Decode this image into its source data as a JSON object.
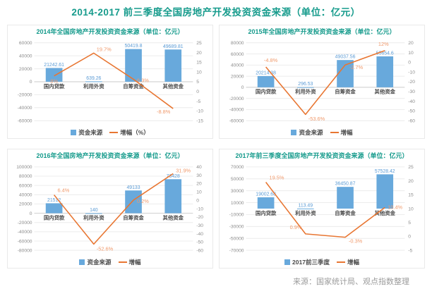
{
  "page": {
    "title": "2014-2017 前三季度全国房地产开发投资资金来源（单位：亿元）",
    "source": "来源：国家统计局、观点指数整理"
  },
  "colors": {
    "accent_teal": "#169B8C",
    "bar_blue": "#68A9DC",
    "bar_label_blue": "#5B9BD5",
    "line_orange": "#E87632",
    "line_label_orange": "#F09A6C",
    "axis_text_gray": "#8C8C8C",
    "category_text": "#4A4A4A",
    "grid_gray": "#ECECEC",
    "zero_line_gray": "#CBCBCB"
  },
  "chart_data": [
    {
      "type": "bar",
      "title": "2014年全国房地产开发投资资金来源（单位：亿元）",
      "categories": [
        "国内贷款",
        "利用外资",
        "自筹资金",
        "其他资金"
      ],
      "series": [
        {
          "name": "资金来源",
          "kind": "bar",
          "axis": "left",
          "values": [
            21242.61,
            639.26,
            50419.8,
            49689.81
          ],
          "labels": [
            "21242.61",
            "639.26",
            "50419.8",
            "49689.81"
          ]
        },
        {
          "name": "增幅（%）",
          "kind": "line",
          "axis": "right",
          "values": [
            8,
            19.7,
            6.3,
            -8.8
          ],
          "labels": [
            "8%",
            "19.7%",
            "6.3%",
            "-8.8%"
          ]
        }
      ],
      "left_axis": {
        "max": 60000,
        "min": -60000,
        "step": 20000
      },
      "right_axis": {
        "max": 25,
        "min": -15,
        "step": 5
      },
      "legend": [
        "资金来源",
        "增幅（%）"
      ],
      "legend_position": "bottom",
      "grid": true
    },
    {
      "type": "bar",
      "title": "2015年全国房地产开发投资资金来源（单位：亿元）",
      "categories": [
        "国内贷款",
        "利用外资",
        "自筹资金",
        "其他资金"
      ],
      "series": [
        {
          "name": "资金来源",
          "kind": "bar",
          "axis": "left",
          "values": [
            20214.38,
            296.53,
            49037.56,
            55654.6
          ],
          "labels": [
            "20214.38",
            "296.53",
            "49037.56",
            "55654.6"
          ]
        },
        {
          "name": "增幅",
          "kind": "line",
          "axis": "right",
          "values": [
            -4.8,
            -53.6,
            -2.7,
            12
          ],
          "labels": [
            "-4.8%",
            "-53.6%",
            "-2.7%",
            "12%"
          ]
        }
      ],
      "left_axis": {
        "max": 80000,
        "min": -60000,
        "step": 20000
      },
      "right_axis": {
        "max": 20,
        "min": -60,
        "step": 10
      },
      "legend": [
        "资金来源",
        "增幅"
      ],
      "legend_position": "bottom",
      "grid": true
    },
    {
      "type": "bar",
      "title": "2016年全国房地产开发投资资金来源（单位：亿元）",
      "categories": [
        "国内贷款",
        "利用外资",
        "自筹资金",
        "其他资金"
      ],
      "series": [
        {
          "name": "资金来源",
          "kind": "bar",
          "axis": "left",
          "values": [
            21512,
            140,
            49133,
            73428
          ],
          "labels": [
            "21512",
            "140",
            "49133",
            "73428"
          ]
        },
        {
          "name": "增幅",
          "kind": "line",
          "axis": "right",
          "values": [
            6.4,
            -52.6,
            0.2,
            31.9
          ],
          "labels": [
            "6.4%",
            "-52.6%",
            "0.2%",
            "31.9%"
          ]
        }
      ],
      "left_axis": {
        "max": 100000,
        "min": -80000,
        "step": 20000
      },
      "right_axis": {
        "max": 40,
        "min": -60,
        "step": 10
      },
      "legend": [
        "资金来源",
        "增幅"
      ],
      "legend_position": "bottom",
      "grid": true
    },
    {
      "type": "bar",
      "title": "2017年前三季度全国房地产开发投资资金来源（单位：亿元）",
      "categories": [
        "国内贷款",
        "利用外资",
        "自筹资金",
        "其他资金"
      ],
      "series": [
        {
          "name": "2017前三季度",
          "kind": "bar",
          "axis": "left",
          "values": [
            19002.68,
            113.49,
            36450.87,
            57528.42
          ],
          "labels": [
            "19002.68",
            "113.49",
            "36450.87",
            "57528.42"
          ]
        },
        {
          "name": "增幅",
          "kind": "line",
          "axis": "right",
          "values": [
            19.5,
            0.9,
            -0.3,
            10.4
          ],
          "labels": [
            "19.5%",
            "0.9%",
            "-0.3%",
            "10.4%"
          ]
        }
      ],
      "left_axis": {
        "max": 70000,
        "min": -70000,
        "step": 20000
      },
      "right_axis": {
        "max": 25,
        "min": -5,
        "step": 5
      },
      "legend": [
        "2017前三季度",
        "增幅"
      ],
      "legend_position": "bottom",
      "grid": true
    }
  ]
}
